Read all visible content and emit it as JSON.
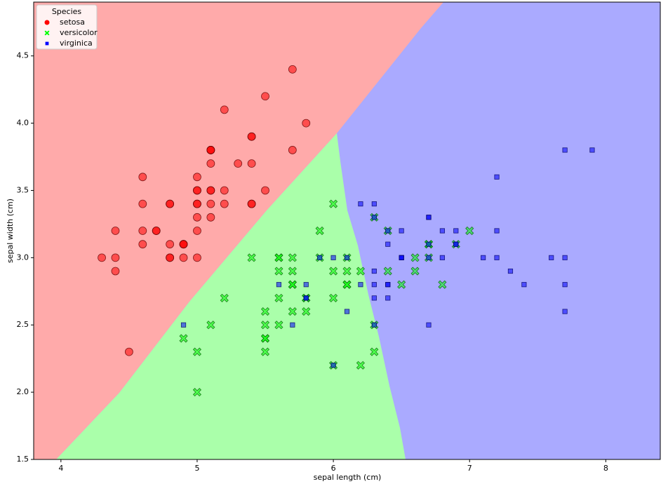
{
  "chart_data": {
    "type": "scatter",
    "x_label": "sepal length (cm)",
    "y_label": "sepal width (cm)",
    "legend_title": "Species",
    "legend": "upper left",
    "xlim": [
      3.8,
      8.4
    ],
    "ylim": [
      1.5,
      4.9
    ],
    "xticks": [
      4,
      5,
      6,
      7,
      8
    ],
    "yticks": [
      1.5,
      {
        "value": 2,
        "label": "2.0"
      },
      2.5,
      {
        "value": 3,
        "label": "3.0"
      },
      3.5,
      {
        "value": 4,
        "label": "4.0"
      },
      4.5
    ],
    "grid": false,
    "series": [
      {
        "name": "setosa",
        "color": "#ff0000",
        "edge": "#600000",
        "marker": "circle",
        "x": [
          5.1,
          4.9,
          4.7,
          4.6,
          5.0,
          5.4,
          4.6,
          5.0,
          4.4,
          4.9,
          5.4,
          4.8,
          4.8,
          4.3,
          5.8,
          5.7,
          5.4,
          5.1,
          5.7,
          5.1,
          5.4,
          5.1,
          4.6,
          5.1,
          4.8,
          5.0,
          5.0,
          5.2,
          5.2,
          4.7,
          4.8,
          5.4,
          5.2,
          5.5,
          4.9,
          5.0,
          5.5,
          4.9,
          4.4,
          5.1,
          5.0,
          4.5,
          4.4,
          5.0,
          5.1,
          4.8,
          5.1,
          4.6,
          5.3,
          5.0
        ],
        "values": [
          3.5,
          3.0,
          3.2,
          3.1,
          3.6,
          3.9,
          3.4,
          3.4,
          2.9,
          3.1,
          3.7,
          3.4,
          3.0,
          3.0,
          4.0,
          4.4,
          3.9,
          3.5,
          3.8,
          3.8,
          3.4,
          3.7,
          3.6,
          3.3,
          3.4,
          3.0,
          3.4,
          3.5,
          3.4,
          3.2,
          3.1,
          3.4,
          4.1,
          4.2,
          3.1,
          3.2,
          3.5,
          3.1,
          3.0,
          3.4,
          3.5,
          2.3,
          3.2,
          3.5,
          3.8,
          3.0,
          3.8,
          3.2,
          3.7,
          3.3
        ]
      },
      {
        "name": "versicolor",
        "color": "#00ff00",
        "edge": "#006000",
        "marker": "x",
        "x": [
          7.0,
          6.4,
          6.9,
          5.5,
          6.5,
          5.7,
          6.3,
          4.9,
          6.6,
          5.2,
          5.0,
          5.9,
          6.0,
          6.1,
          5.6,
          6.7,
          5.6,
          5.8,
          6.2,
          5.6,
          5.9,
          6.1,
          6.3,
          6.1,
          6.4,
          6.6,
          6.8,
          6.7,
          6.0,
          5.7,
          5.5,
          5.5,
          5.8,
          6.0,
          5.4,
          6.0,
          6.7,
          6.3,
          5.6,
          5.5,
          5.5,
          6.1,
          5.8,
          5.0,
          5.6,
          5.7,
          5.7,
          6.2,
          5.1,
          5.7
        ],
        "values": [
          3.2,
          3.2,
          3.1,
          2.3,
          2.8,
          2.8,
          3.3,
          2.4,
          2.9,
          2.7,
          2.0,
          3.0,
          2.2,
          2.9,
          2.9,
          3.1,
          3.0,
          2.7,
          2.2,
          2.5,
          3.2,
          2.8,
          2.5,
          2.8,
          2.9,
          3.0,
          2.8,
          3.0,
          2.9,
          2.6,
          2.4,
          2.4,
          2.7,
          2.7,
          3.0,
          3.4,
          3.1,
          2.3,
          3.0,
          2.5,
          2.6,
          3.0,
          2.6,
          2.3,
          2.7,
          3.0,
          2.9,
          2.9,
          2.5,
          2.8
        ]
      },
      {
        "name": "virginica",
        "color": "#0000ff",
        "edge": "#000060",
        "marker": "square",
        "x": [
          6.3,
          5.8,
          7.1,
          6.3,
          6.5,
          7.6,
          4.9,
          7.3,
          6.7,
          7.2,
          6.5,
          6.4,
          6.8,
          5.7,
          5.8,
          6.4,
          6.5,
          7.7,
          7.7,
          6.0,
          6.9,
          5.6,
          7.7,
          6.3,
          6.7,
          7.2,
          6.2,
          6.1,
          6.4,
          7.2,
          7.4,
          7.9,
          6.4,
          6.3,
          6.1,
          7.7,
          6.3,
          6.4,
          6.0,
          6.9,
          6.7,
          6.9,
          5.8,
          6.8,
          6.7,
          6.7,
          6.3,
          6.5,
          6.2,
          5.9
        ],
        "values": [
          3.3,
          2.7,
          3.0,
          2.9,
          3.0,
          3.0,
          2.5,
          2.9,
          2.5,
          3.6,
          3.2,
          2.7,
          3.0,
          2.5,
          2.8,
          3.2,
          3.0,
          3.8,
          2.6,
          2.2,
          3.2,
          2.8,
          2.8,
          2.7,
          3.3,
          3.2,
          2.8,
          3.0,
          2.8,
          3.0,
          2.8,
          3.8,
          2.8,
          2.8,
          2.6,
          3.0,
          3.4,
          3.1,
          3.0,
          3.1,
          3.1,
          3.1,
          2.7,
          3.2,
          3.3,
          3.0,
          2.5,
          3.0,
          3.4,
          3.0
        ]
      }
    ]
  }
}
